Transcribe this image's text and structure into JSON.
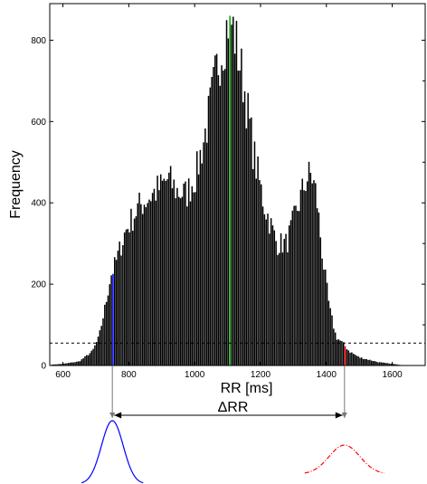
{
  "chart_data": {
    "type": "bar",
    "xlabel": "RR [ms]",
    "ylabel": "Frequency",
    "xlim": [
      560,
      1700
    ],
    "ylim": [
      0,
      890
    ],
    "x_ticks": [
      600,
      800,
      1000,
      1200,
      1400,
      1600
    ],
    "y_ticks": [
      0,
      200,
      400,
      600,
      800
    ],
    "bin_width": 5,
    "threshold": 55,
    "bar_color": "#000000",
    "highlight_low": {
      "x": 750,
      "color": "#0000ff"
    },
    "highlight_mode": {
      "x": 1105,
      "color": "#00aa00"
    },
    "highlight_high": {
      "x": 1455,
      "color": "#ff0000"
    },
    "histogram_profile": [
      [
        560,
        0
      ],
      [
        565,
        2
      ],
      [
        600,
        4
      ],
      [
        650,
        10
      ],
      [
        690,
        35
      ],
      [
        710,
        70
      ],
      [
        730,
        150
      ],
      [
        745,
        220
      ],
      [
        760,
        250
      ],
      [
        790,
        330
      ],
      [
        830,
        390
      ],
      [
        870,
        420
      ],
      [
        900,
        440
      ],
      [
        920,
        460
      ],
      [
        945,
        430
      ],
      [
        975,
        420
      ],
      [
        1005,
        470
      ],
      [
        1040,
        600
      ],
      [
        1070,
        740
      ],
      [
        1090,
        800
      ],
      [
        1105,
        860
      ],
      [
        1120,
        820
      ],
      [
        1150,
        690
      ],
      [
        1180,
        520
      ],
      [
        1210,
        400
      ],
      [
        1250,
        300
      ],
      [
        1280,
        300
      ],
      [
        1310,
        380
      ],
      [
        1340,
        460
      ],
      [
        1355,
        470
      ],
      [
        1370,
        420
      ],
      [
        1390,
        260
      ],
      [
        1410,
        140
      ],
      [
        1430,
        70
      ],
      [
        1450,
        55
      ],
      [
        1470,
        35
      ],
      [
        1500,
        20
      ],
      [
        1560,
        8
      ],
      [
        1620,
        2
      ],
      [
        1640,
        0
      ],
      [
        1700,
        0
      ]
    ],
    "annotations": {
      "delta_label": "ΔRR",
      "blue_peak_x": 750,
      "red_peak_x": 1455
    }
  }
}
